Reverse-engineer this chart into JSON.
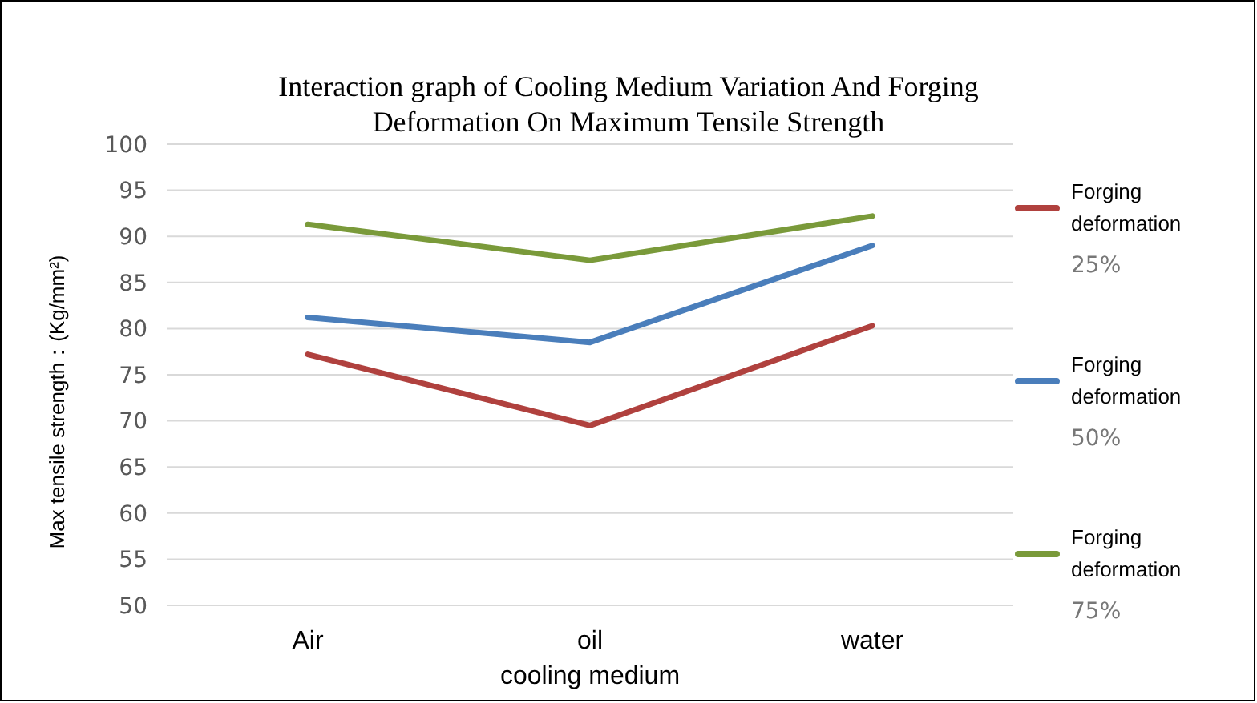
{
  "chart_data": {
    "type": "line",
    "title": "Interaction graph of Cooling Medium Variation And Forging Deformation On Maximum Tensile Strength",
    "xlabel": "cooling medium",
    "ylabel": "Max tensile strength：(Kg/mm²)",
    "categories": [
      "Air",
      "oil",
      "water"
    ],
    "series": [
      {
        "name": "Forging deformation 25%",
        "color": "#b0413e",
        "values": [
          77.2,
          69.5,
          80.3
        ]
      },
      {
        "name": "Forging deformation 50%",
        "color": "#4a7ebb",
        "values": [
          81.2,
          78.5,
          89.0
        ]
      },
      {
        "name": "Forging deformation 75%",
        "color": "#7a9a3a",
        "values": [
          91.3,
          87.4,
          92.2
        ]
      }
    ],
    "ylim": [
      50,
      100
    ],
    "yticks": [
      50,
      55,
      60,
      65,
      70,
      75,
      80,
      85,
      90,
      95,
      100
    ],
    "grid": "y",
    "legend": "right",
    "marker": "none",
    "line_style": "solid"
  }
}
